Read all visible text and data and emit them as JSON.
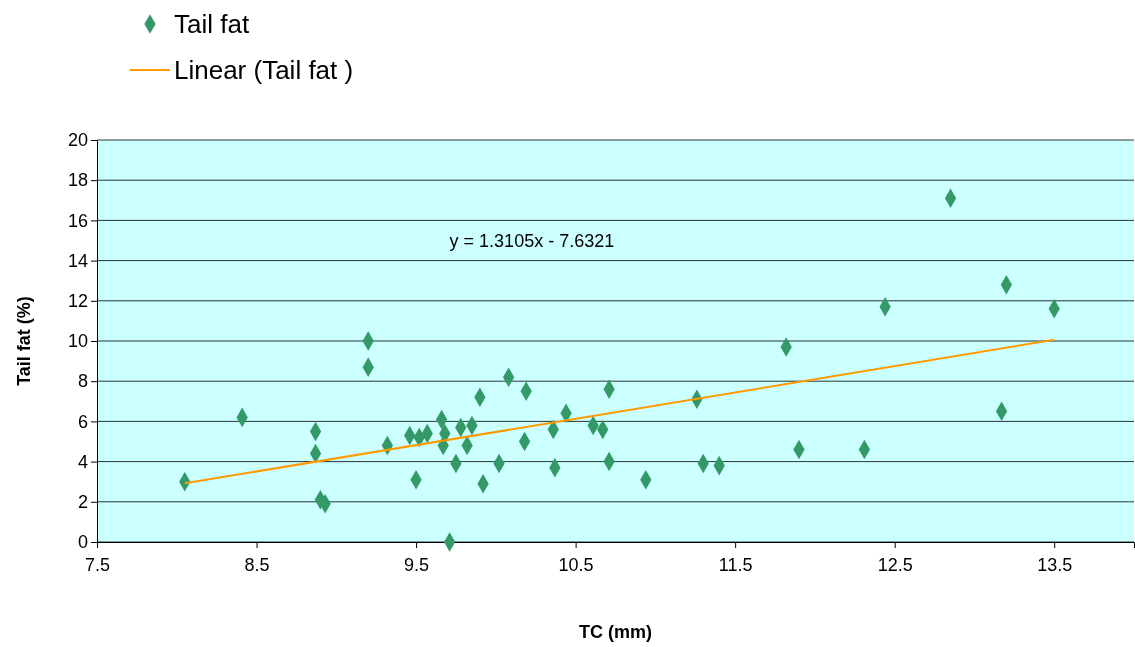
{
  "chart_data": {
    "type": "scatter",
    "xlabel": "TC (mm)",
    "ylabel": "Tail fat (%)",
    "xlim": [
      7.5,
      14
    ],
    "xticks": [
      7.5,
      8.5,
      9.5,
      10.5,
      11.5,
      12.5,
      13.5
    ],
    "ylim": [
      0,
      20
    ],
    "yticks": [
      0,
      2,
      4,
      6,
      8,
      10,
      12,
      14,
      16,
      18,
      20
    ],
    "grid": "y",
    "legend": "top left",
    "marker": "diamond",
    "annotations": [
      "y = 1.3105x - 7.6321"
    ],
    "series": [
      {
        "name": "Tail fat",
        "color": "#339966",
        "x": [
          8.05,
          8.41,
          8.87,
          8.87,
          8.9,
          8.93,
          9.2,
          9.2,
          9.32,
          9.46,
          9.5,
          9.52,
          9.57,
          9.66,
          9.67,
          9.68,
          9.71,
          9.75,
          9.78,
          9.82,
          9.85,
          9.9,
          9.92,
          10.02,
          10.08,
          10.18,
          10.19,
          10.36,
          10.37,
          10.44,
          10.61,
          10.67,
          10.71,
          10.71,
          10.94,
          11.26,
          11.3,
          11.4,
          11.82,
          11.9,
          12.31,
          12.44,
          12.85,
          13.17,
          13.2,
          13.5
        ],
        "values": [
          3.0,
          6.2,
          5.5,
          4.4,
          2.1,
          1.9,
          10.0,
          8.7,
          4.8,
          5.3,
          3.1,
          5.2,
          5.4,
          6.1,
          4.8,
          5.4,
          0,
          3.9,
          5.7,
          4.8,
          5.8,
          7.2,
          2.9,
          3.9,
          8.2,
          5.0,
          7.5,
          5.6,
          3.7,
          6.4,
          5.8,
          5.6,
          7.6,
          4.0,
          3.1,
          7.1,
          3.9,
          3.8,
          9.7,
          4.6,
          4.6,
          11.7,
          17.1,
          6.5,
          12.8,
          11.6
        ]
      },
      {
        "name": "Linear (Tail fat )",
        "type": "line",
        "color": "#ff9900",
        "line_style": "solid",
        "marker": "none",
        "x": [
          8.05,
          13.5
        ],
        "values": [
          2.92,
          10.06
        ]
      }
    ]
  }
}
